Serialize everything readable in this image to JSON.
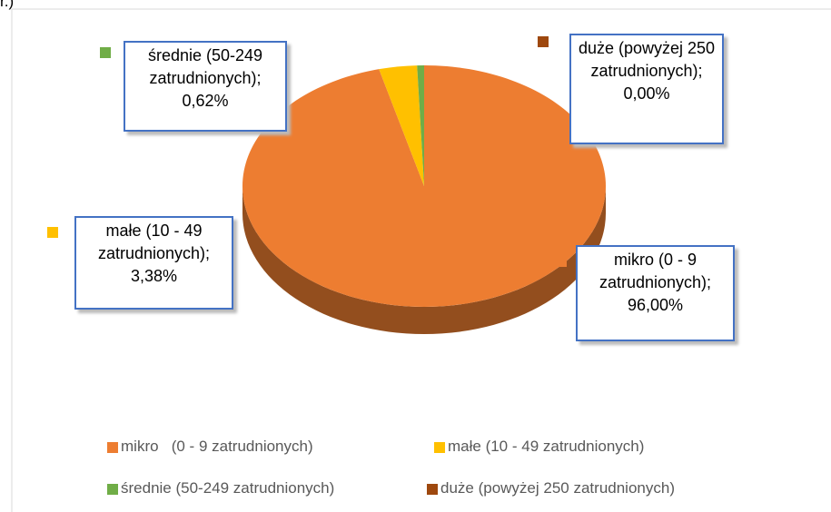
{
  "corner_text": "r.)",
  "chart_data": {
    "type": "pie",
    "categories": [
      "mikro   (0 - 9 zatrudnionych)",
      "małe (10 - 49 zatrudnionych)",
      "średnie (50-249 zatrudnionych)",
      "duże (powyżej 250 zatrudnionych)"
    ],
    "values": [
      96,
      3.38,
      0.62,
      0
    ],
    "value_labels": [
      "mikro   (0 - 9 zatrudnionych); 96,00%",
      "małe (10 - 49 zatrudnionych); 3,38%",
      "średnie (50-249 zatrudnionych); 0,62%",
      "duże (powyżej 250 zatrudnionych); 0,00%"
    ],
    "colors": [
      "#ed7d31",
      "#ffc000",
      "#70ad47",
      "#9e480e"
    ],
    "legend": "bottom"
  }
}
